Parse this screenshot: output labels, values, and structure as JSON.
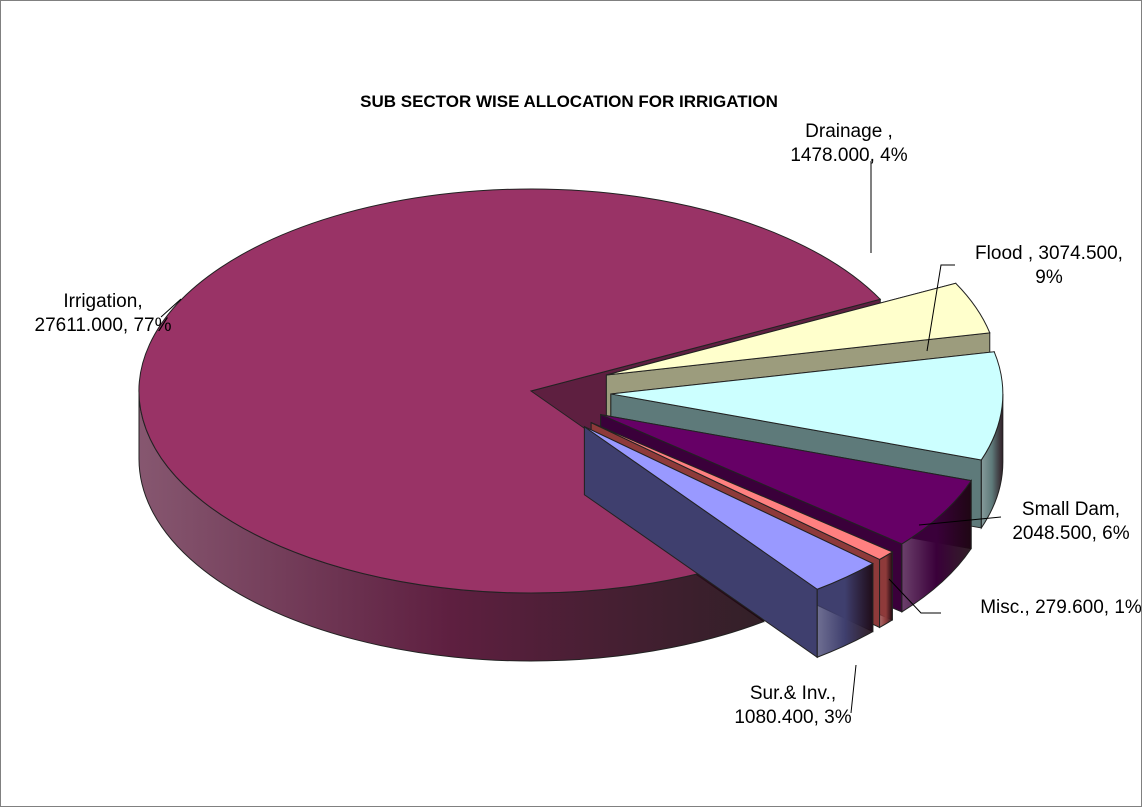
{
  "chart_data": {
    "type": "pie",
    "title": "SUB SECTOR WISE ALLOCATION FOR IRRIGATION",
    "slices": [
      {
        "label_lines": [
          "Drainage ,",
          "1478.000, 4%"
        ],
        "value": 1478.0,
        "percent": 4,
        "top_color": "#FFFFCC",
        "side_color": "#9C9C7D"
      },
      {
        "label_lines": [
          "Flood , 3074.500,",
          "9%"
        ],
        "value": 3074.5,
        "percent": 9,
        "top_color": "#CCFFFF",
        "side_color": "#5E7A7A"
      },
      {
        "label_lines": [
          "Small Dam,",
          "2048.500, 6%"
        ],
        "value": 2048.5,
        "percent": 6,
        "top_color": "#660066",
        "side_color": "#3A003A"
      },
      {
        "label_lines": [
          "Misc., 279.600, 1%"
        ],
        "value": 279.6,
        "percent": 1,
        "top_color": "#FF8080",
        "side_color": "#8E3A3A"
      },
      {
        "label_lines": [
          "Sur.& Inv.,",
          "1080.400, 3%"
        ],
        "value": 1080.4,
        "percent": 3,
        "top_color": "#9999FF",
        "side_color": "#3F3F6E"
      },
      {
        "label_lines": [
          "Irrigation,",
          "27611.000, 77%"
        ],
        "value": 27611.0,
        "percent": 77,
        "top_color": "#993366",
        "side_color": "#5E1F40"
      }
    ]
  }
}
